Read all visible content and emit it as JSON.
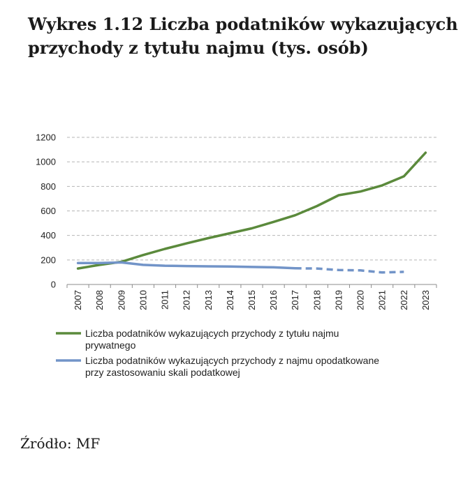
{
  "title_line1": "Wykres 1.12 Liczba podatników wykazujących",
  "title_line2": "przychody z tytułu najmu (tys. osób)",
  "source": "Źródło: MF",
  "chart_data": {
    "type": "line",
    "title": "Wykres 1.12 Liczba podatników wykazujących przychody z tytułu najmu (tys. osób)",
    "xlabel": "",
    "ylabel": "",
    "ylim": [
      0,
      1200
    ],
    "yticks": [
      0,
      200,
      400,
      600,
      800,
      1000,
      1200
    ],
    "grid": true,
    "legend_position": "bottom",
    "categories": [
      "2007",
      "2008",
      "2009",
      "2010",
      "2011",
      "2012",
      "2013",
      "2014",
      "2015",
      "2016",
      "2017",
      "2018",
      "2019",
      "2020",
      "2021",
      "2022",
      "2023"
    ],
    "series": [
      {
        "name_line1": "Liczba podatników wykazujących przychody z tytułu najmu",
        "name_line2": "prywatnego",
        "color": "#5b8a3c",
        "values": [
          130,
          160,
          185,
          240,
          290,
          335,
          378,
          418,
          458,
          510,
          565,
          640,
          728,
          758,
          808,
          882,
          1075
        ],
        "dashed_from_index": null
      },
      {
        "name_line1": "Liczba podatników wykazujących przychody z najmu opodatkowane",
        "name_line2": "przy zastosowaniu skali podatkowej",
        "color": "#7294c8",
        "values": [
          175,
          175,
          180,
          160,
          153,
          150,
          148,
          146,
          143,
          140,
          132,
          130,
          118,
          115,
          98,
          103,
          null
        ],
        "dashed_from_index": 10
      }
    ]
  }
}
